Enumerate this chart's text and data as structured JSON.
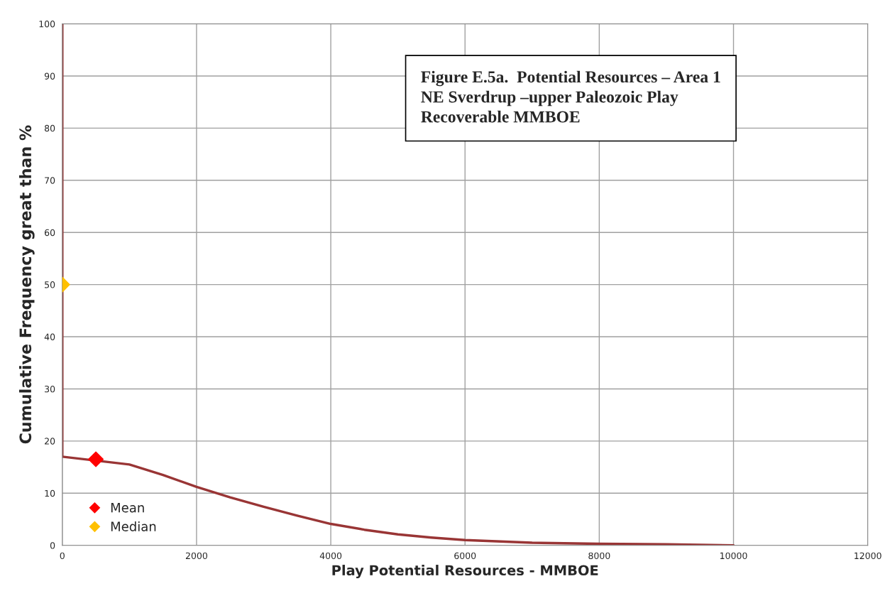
{
  "chart_data": {
    "type": "line",
    "title": "Figure E.5a.  Potential Resources – Area 1\nNE Sverdrup –upper Paleozoic Play\nRecoverable MMBOE",
    "xlabel": "Play Potential Resources - MMBOE",
    "ylabel": "Cumulative Frequency great than %",
    "series": [
      {
        "color": "#993535",
        "x": [
          0,
          0,
          1000,
          1500,
          2000,
          2500,
          3000,
          3500,
          4000,
          4500,
          5000,
          5500,
          6000,
          7000,
          8000,
          9000,
          10000
        ],
        "values": [
          100,
          17,
          15.5,
          13.5,
          11.2,
          9.2,
          7.4,
          5.7,
          4.1,
          3.0,
          2.1,
          1.5,
          1.0,
          0.5,
          0.3,
          0.2,
          0
        ]
      },
      {
        "type": "scatter",
        "name": "Mean",
        "color": "#ff0000",
        "marker": "diamond",
        "x": [
          500
        ],
        "values": [
          16.5
        ]
      },
      {
        "type": "scatter",
        "name": "Median",
        "color": "#ffc000",
        "marker": "diamond",
        "x": [
          0
        ],
        "values": [
          50
        ]
      }
    ],
    "xlim": [
      0,
      12000
    ],
    "xticks": [
      0,
      2000,
      4000,
      6000,
      8000,
      10000,
      12000
    ],
    "ylim": [
      0,
      100
    ],
    "yticks": [
      0,
      10,
      20,
      30,
      40,
      50,
      60,
      70,
      80,
      90,
      100
    ],
    "grid": true,
    "legend": "bottom left"
  }
}
